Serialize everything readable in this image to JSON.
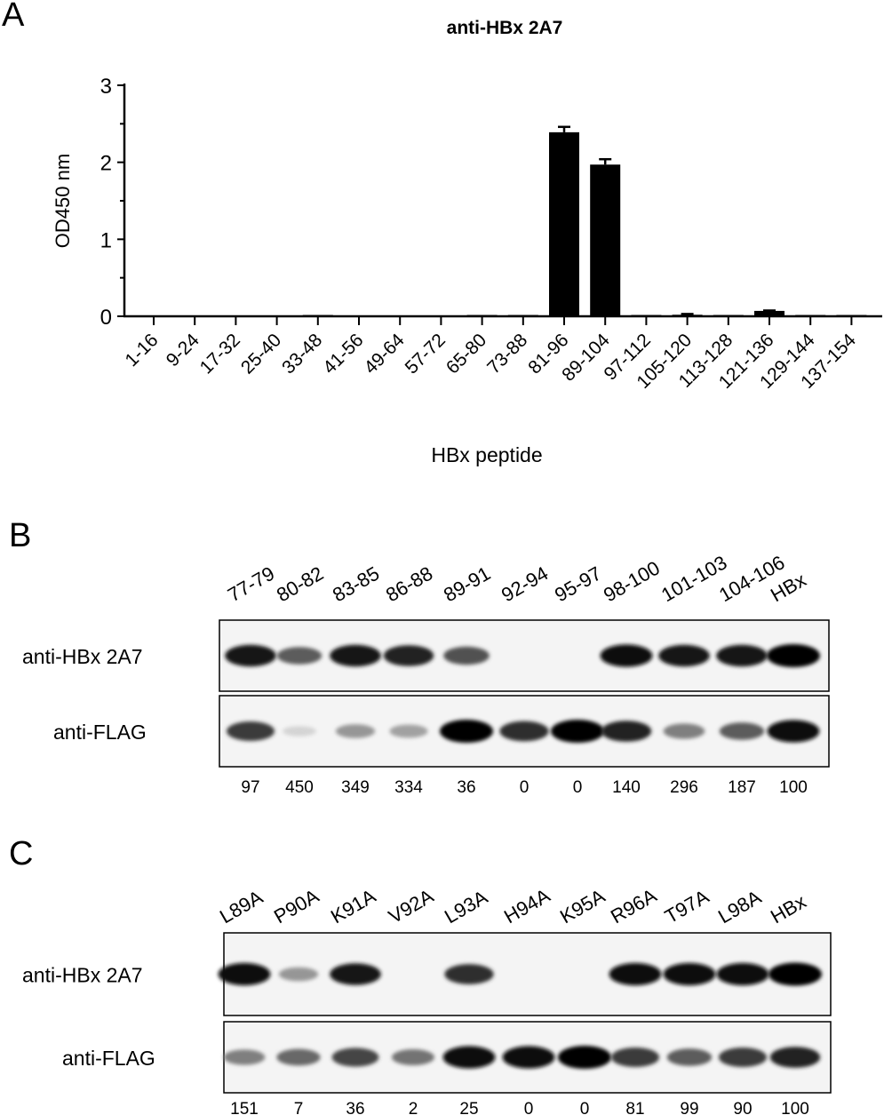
{
  "panel_a": {
    "letter": "A",
    "chart_data": {
      "type": "bar",
      "title": "anti-HBx 2A7",
      "xlabel": "HBx peptide",
      "ylabel": "OD450 nm",
      "ylim": [
        0,
        3
      ],
      "yticks": [
        "0",
        "1",
        "2",
        "3"
      ],
      "grid": false,
      "categories": [
        "1-16",
        "9-24",
        "17-32",
        "25-40",
        "33-48",
        "41-56",
        "49-64",
        "57-72",
        "65-80",
        "73-88",
        "81-96",
        "89-104",
        "97-112",
        "105-120",
        "113-128",
        "121-136",
        "129-144",
        "137-154"
      ],
      "values": [
        0.0,
        0.0,
        0.0,
        0.0,
        0.01,
        0.0,
        0.0,
        0.0,
        0.005,
        0.01,
        2.39,
        1.97,
        0.01,
        0.02,
        0.01,
        0.07,
        0.01,
        0.01
      ],
      "errors": [
        0,
        0,
        0,
        0,
        0,
        0,
        0,
        0,
        0,
        0,
        0.07,
        0.07,
        0,
        0.01,
        0,
        0.005,
        0,
        0
      ]
    }
  },
  "panel_b": {
    "letter": "B",
    "lanes": [
      "77-79",
      "80-82",
      "83-85",
      "86-88",
      "89-91",
      "92-94",
      "95-97",
      "98-100",
      "101-103",
      "104-106",
      "HBx"
    ],
    "rows": [
      "anti-HBx 2A7",
      "anti-FLAG"
    ],
    "quant": [
      "97",
      "450",
      "349",
      "334",
      "36",
      "0",
      "0",
      "140",
      "296",
      "187",
      "100"
    ],
    "band_intensity": [
      [
        0.9,
        0.6,
        0.9,
        0.85,
        0.65,
        0,
        0,
        0.95,
        0.9,
        0.9,
        1.0
      ],
      [
        0.75,
        0.08,
        0.35,
        0.3,
        1.0,
        0.8,
        1.0,
        0.85,
        0.45,
        0.6,
        0.95
      ]
    ]
  },
  "panel_c": {
    "letter": "C",
    "lanes": [
      "L89A",
      "P90A",
      "K91A",
      "V92A",
      "L93A",
      "H94A",
      "K95A",
      "R96A",
      "T97A",
      "L98A",
      "HBx"
    ],
    "rows": [
      "anti-HBx 2A7",
      "anti-FLAG"
    ],
    "quant": [
      "151",
      "7",
      "36",
      "2",
      "25",
      "0",
      "0",
      "81",
      "99",
      "90",
      "100"
    ],
    "band_intensity": [
      [
        0.95,
        0.35,
        0.9,
        0,
        0.8,
        0,
        0,
        0.95,
        0.95,
        0.95,
        1.0
      ],
      [
        0.45,
        0.55,
        0.7,
        0.5,
        0.95,
        0.95,
        1.0,
        0.75,
        0.6,
        0.75,
        0.85
      ]
    ]
  }
}
